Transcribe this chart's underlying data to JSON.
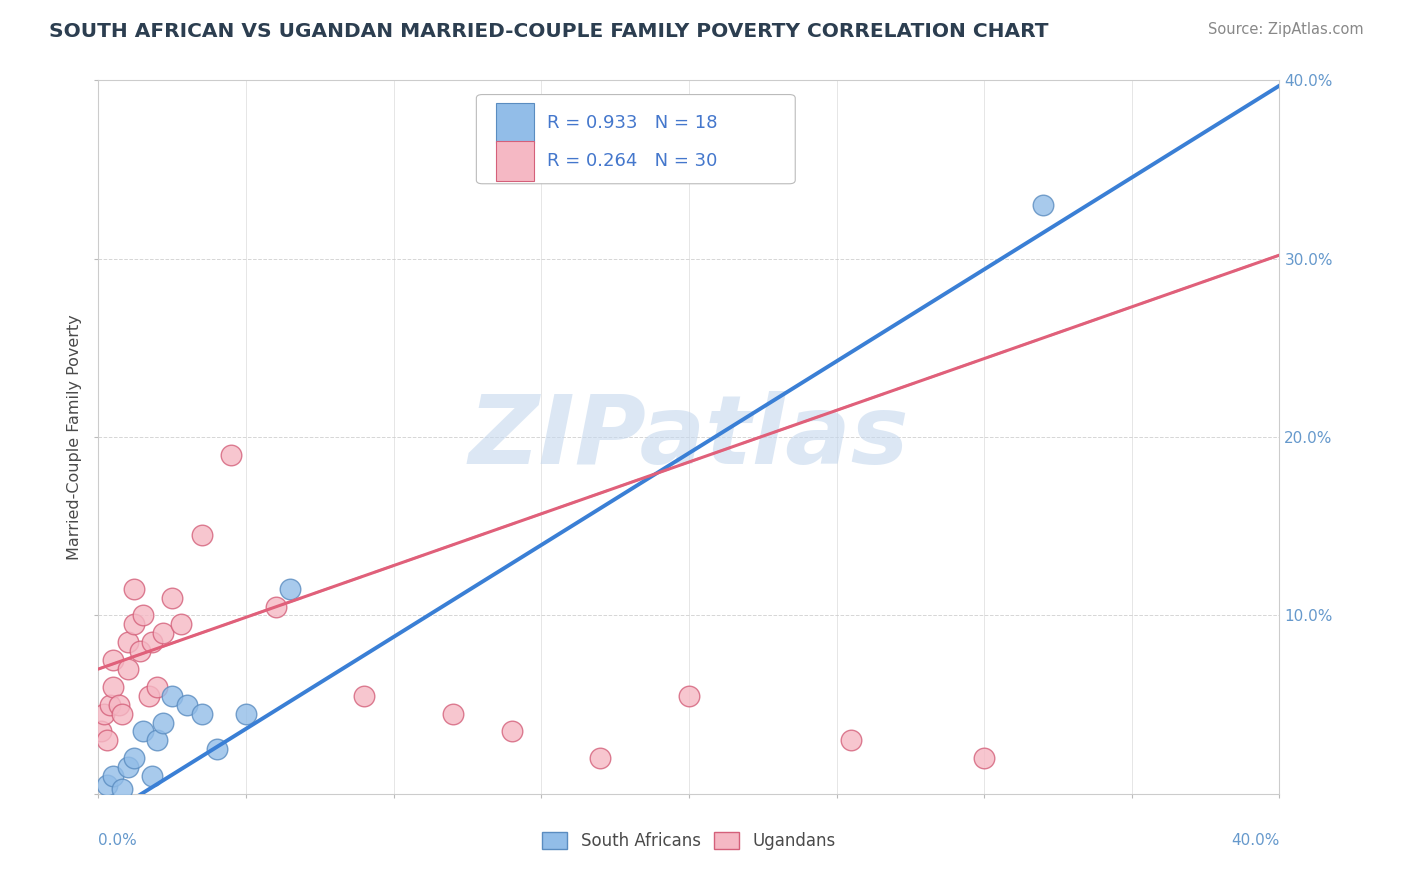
{
  "title": "SOUTH AFRICAN VS UGANDAN MARRIED-COUPLE FAMILY POVERTY CORRELATION CHART",
  "source": "Source: ZipAtlas.com",
  "ylabel": "Married-Couple Family Poverty",
  "watermark": "ZIPatlas",
  "legend_label1": "South Africans",
  "legend_label2": "Ugandans",
  "south_african_x": [
    0.3,
    0.5,
    0.8,
    1.0,
    1.2,
    1.5,
    1.8,
    2.0,
    2.2,
    2.5,
    3.0,
    3.5,
    4.0,
    5.0,
    6.5,
    32.0
  ],
  "south_african_y": [
    0.5,
    1.0,
    0.3,
    1.5,
    2.0,
    3.5,
    1.0,
    3.0,
    4.0,
    5.5,
    5.0,
    4.5,
    2.5,
    4.5,
    11.5,
    33.0
  ],
  "ugandan_x": [
    0.1,
    0.2,
    0.3,
    0.4,
    0.5,
    0.5,
    0.7,
    0.8,
    1.0,
    1.0,
    1.2,
    1.2,
    1.4,
    1.5,
    1.7,
    1.8,
    2.0,
    2.2,
    2.5,
    2.8,
    3.5,
    4.5,
    6.0,
    9.0,
    12.0,
    14.0,
    17.0,
    20.0,
    25.5,
    30.0
  ],
  "ugandan_y": [
    3.5,
    4.5,
    3.0,
    5.0,
    6.0,
    7.5,
    5.0,
    4.5,
    7.0,
    8.5,
    9.5,
    11.5,
    8.0,
    10.0,
    5.5,
    8.5,
    6.0,
    9.0,
    11.0,
    9.5,
    14.5,
    19.0,
    10.5,
    5.5,
    4.5,
    3.5,
    2.0,
    5.5,
    3.0,
    2.0
  ],
  "sa_color": "#92bde8",
  "sa_edge": "#5a8cc0",
  "ug_color": "#f5b8c4",
  "ug_edge": "#d4607a",
  "line_sa_color": "#3a7fd5",
  "line_ug_color": "#e0607a",
  "line_ug_style": "solid",
  "line_ug_dashed_color": "#e8a0b0",
  "xmin": 0.0,
  "xmax": 40.0,
  "ymin": 0.0,
  "ymax": 40.0,
  "xticks": [
    0.0,
    5.0,
    10.0,
    15.0,
    20.0,
    25.0,
    30.0,
    35.0,
    40.0
  ],
  "yticks": [
    0.0,
    10.0,
    20.0,
    30.0,
    40.0
  ],
  "title_color": "#2c3e50",
  "axis_label_color": "#4a4a4a",
  "tick_color": "#6699cc",
  "grid_color": "#cccccc",
  "background_color": "#ffffff",
  "legend_text_color": "#4477cc",
  "source_color": "#888888",
  "watermark_color": "#c5d8ee",
  "sa_line_intercept": -1.5,
  "sa_line_slope": 1.03,
  "ug_line_intercept": 7.0,
  "ug_line_slope": 0.58
}
